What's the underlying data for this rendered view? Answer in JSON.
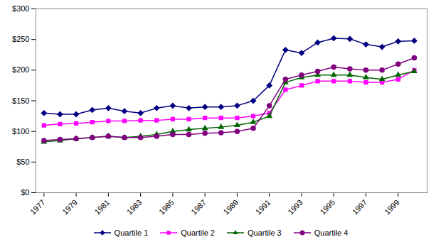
{
  "chart_data": {
    "type": "line",
    "x": [
      1977,
      1978,
      1979,
      1980,
      1981,
      1982,
      1983,
      1984,
      1985,
      1986,
      1987,
      1988,
      1989,
      1990,
      1991,
      1992,
      1993,
      1994,
      1995,
      1996,
      1997,
      1998,
      1999,
      2000
    ],
    "series": [
      {
        "name": "Quartile 1",
        "color": "#000080",
        "marker": "diamond",
        "values": [
          130,
          128,
          128,
          135,
          138,
          133,
          130,
          138,
          142,
          138,
          140,
          140,
          142,
          150,
          175,
          233,
          228,
          245,
          252,
          251,
          242,
          238,
          247,
          248
        ]
      },
      {
        "name": "Quartile 2",
        "color": "#ff00ff",
        "marker": "square",
        "values": [
          110,
          112,
          113,
          115,
          117,
          117,
          118,
          118,
          120,
          120,
          122,
          122,
          122,
          125,
          130,
          168,
          175,
          182,
          182,
          182,
          180,
          180,
          185,
          200
        ]
      },
      {
        "name": "Quartile 3",
        "color": "#006400",
        "marker": "triangle",
        "values": [
          83,
          85,
          88,
          90,
          92,
          90,
          92,
          95,
          100,
          103,
          105,
          107,
          110,
          115,
          125,
          180,
          188,
          192,
          192,
          192,
          188,
          185,
          192,
          198
        ]
      },
      {
        "name": "Quartile 4",
        "color": "#800080",
        "marker": "circle",
        "values": [
          85,
          87,
          88,
          90,
          92,
          90,
          90,
          92,
          95,
          95,
          97,
          98,
          100,
          105,
          142,
          185,
          192,
          198,
          205,
          202,
          200,
          200,
          210,
          220
        ]
      }
    ],
    "xlim": [
      1976.5,
      2000.8
    ],
    "xticks": [
      1977,
      1979,
      1981,
      1983,
      1985,
      1987,
      1989,
      1991,
      1993,
      1995,
      1997,
      1999
    ],
    "ylim": [
      0,
      300
    ],
    "yticks": [
      {
        "value": 0,
        "label": "$0"
      },
      {
        "value": 50,
        "label": "$50"
      },
      {
        "value": 100,
        "label": "$100"
      },
      {
        "value": 150,
        "label": "$150"
      },
      {
        "value": 200,
        "label": "$200"
      },
      {
        "value": 250,
        "label": "$250"
      },
      {
        "value": 300,
        "label": "$300"
      }
    ],
    "grid": false,
    "legend": "bottom"
  }
}
